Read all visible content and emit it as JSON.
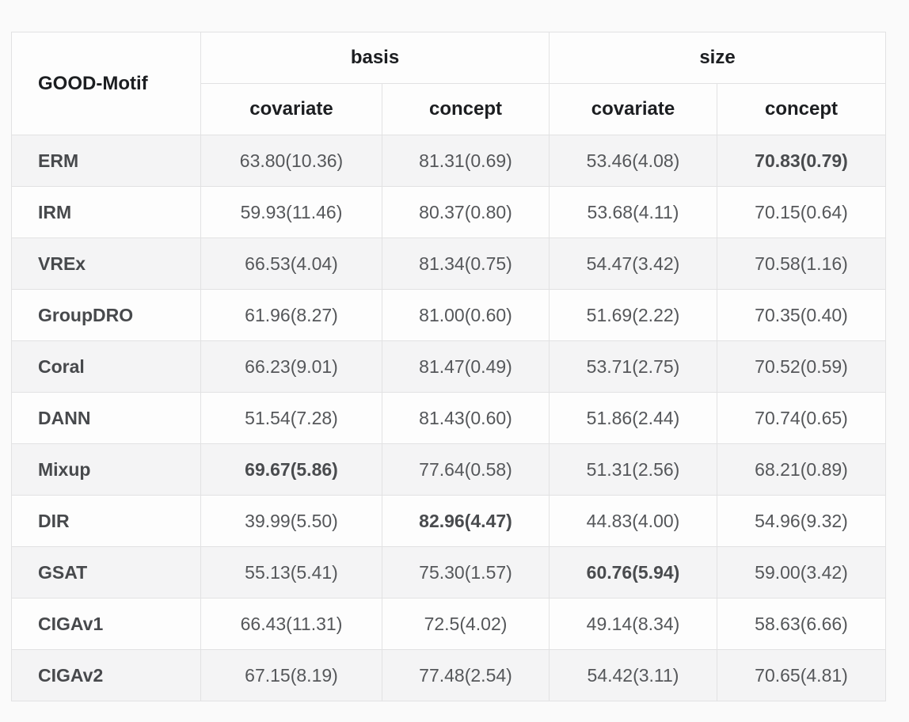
{
  "chart_data": {
    "type": "table",
    "title_cell": "GOOD-Motif",
    "groups": [
      {
        "label": "basis",
        "columns": [
          "covariate",
          "concept"
        ]
      },
      {
        "label": "size",
        "columns": [
          "covariate",
          "concept"
        ]
      }
    ],
    "rows": [
      {
        "method": "ERM",
        "values": [
          "63.80(10.36)",
          "81.31(0.69)",
          "53.46(4.08)",
          "70.83(0.79)"
        ],
        "bold": [
          3
        ]
      },
      {
        "method": "IRM",
        "values": [
          "59.93(11.46)",
          "80.37(0.80)",
          "53.68(4.11)",
          "70.15(0.64)"
        ],
        "bold": []
      },
      {
        "method": "VREx",
        "values": [
          "66.53(4.04)",
          "81.34(0.75)",
          "54.47(3.42)",
          "70.58(1.16)"
        ],
        "bold": []
      },
      {
        "method": "GroupDRO",
        "values": [
          "61.96(8.27)",
          "81.00(0.60)",
          "51.69(2.22)",
          "70.35(0.40)"
        ],
        "bold": []
      },
      {
        "method": "Coral",
        "values": [
          "66.23(9.01)",
          "81.47(0.49)",
          "53.71(2.75)",
          "70.52(0.59)"
        ],
        "bold": []
      },
      {
        "method": "DANN",
        "values": [
          "51.54(7.28)",
          "81.43(0.60)",
          "51.86(2.44)",
          "70.74(0.65)"
        ],
        "bold": []
      },
      {
        "method": "Mixup",
        "values": [
          "69.67(5.86)",
          "77.64(0.58)",
          "51.31(2.56)",
          "68.21(0.89)"
        ],
        "bold": [
          0
        ]
      },
      {
        "method": "DIR",
        "values": [
          "39.99(5.50)",
          "82.96(4.47)",
          "44.83(4.00)",
          "54.96(9.32)"
        ],
        "bold": [
          1
        ]
      },
      {
        "method": "GSAT",
        "values": [
          "55.13(5.41)",
          "75.30(1.57)",
          "60.76(5.94)",
          "59.00(3.42)"
        ],
        "bold": [
          2
        ]
      },
      {
        "method": "CIGAv1",
        "values": [
          "66.43(11.31)",
          "72.5(4.02)",
          "49.14(8.34)",
          "58.63(6.66)"
        ],
        "bold": []
      },
      {
        "method": "CIGAv2",
        "values": [
          "67.15(8.19)",
          "77.48(2.54)",
          "54.42(3.11)",
          "70.65(4.81)"
        ],
        "bold": []
      }
    ]
  },
  "colors": {
    "page_background": "#fafafa",
    "row_background": "#fdfdfd",
    "stripe_background": "#f4f4f5",
    "border": "#e2e2e3",
    "header_text": "#1c1e21",
    "cell_text": "#55575a"
  }
}
